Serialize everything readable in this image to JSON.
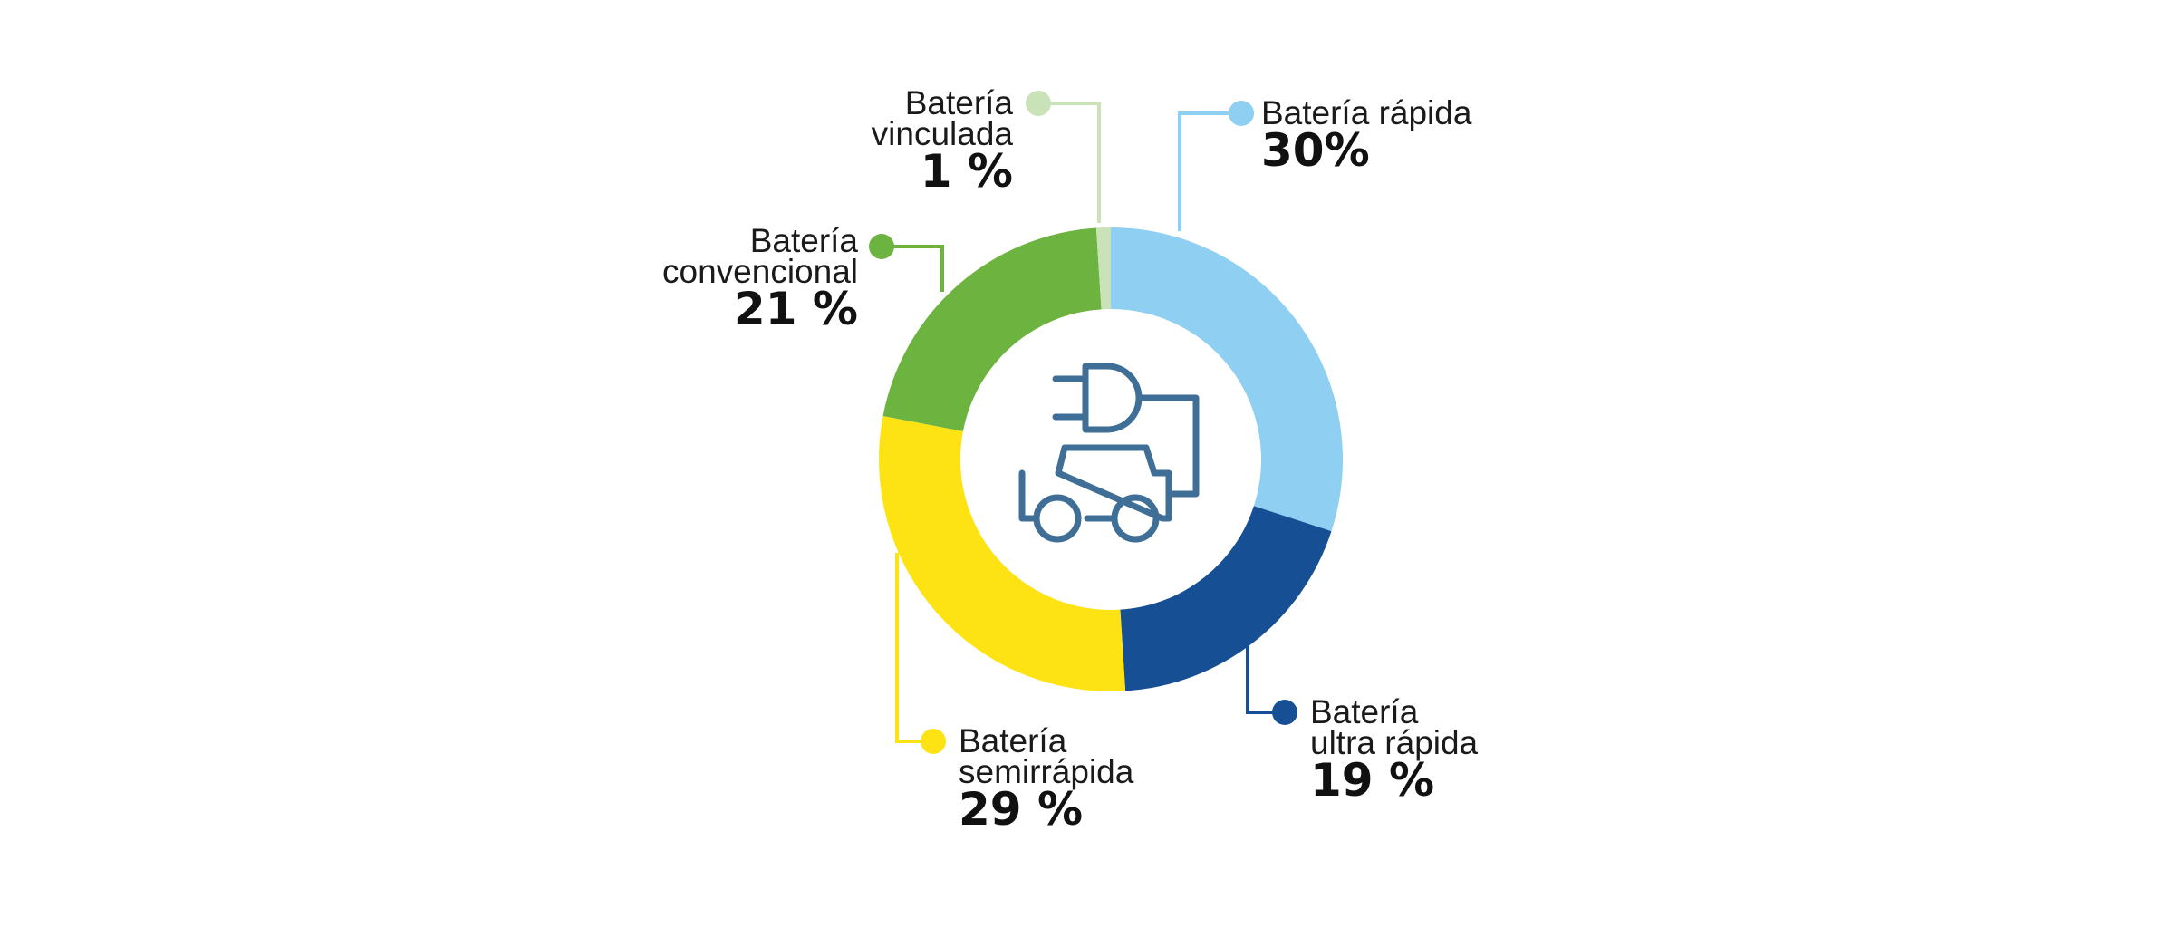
{
  "chart_data": {
    "type": "pie",
    "series": [
      {
        "name": "Batería rápida",
        "lines": [
          "Batería rápida"
        ],
        "value": 30,
        "label": "30%",
        "color": "#8ecff2"
      },
      {
        "name": "Batería ultra rápida",
        "lines": [
          "Batería",
          "ultra rápida"
        ],
        "value": 19,
        "label": "19 %",
        "color": "#164f93"
      },
      {
        "name": "Batería semirrápida",
        "lines": [
          "Batería",
          "semirrápida"
        ],
        "value": 29,
        "label": "29 %",
        "color": "#fde314"
      },
      {
        "name": "Batería convencional",
        "lines": [
          "Batería",
          "convencional"
        ],
        "value": 21,
        "label": "21 %",
        "color": "#6db33f"
      },
      {
        "name": "Batería vinculada",
        "lines": [
          "Batería",
          "vinculada"
        ],
        "value": 1,
        "label": "1 %",
        "color": "#c9e2b8"
      }
    ],
    "center_icon": "electric-car-plug-icon",
    "icon_color": "#3f6f96",
    "legend": "callouts"
  }
}
